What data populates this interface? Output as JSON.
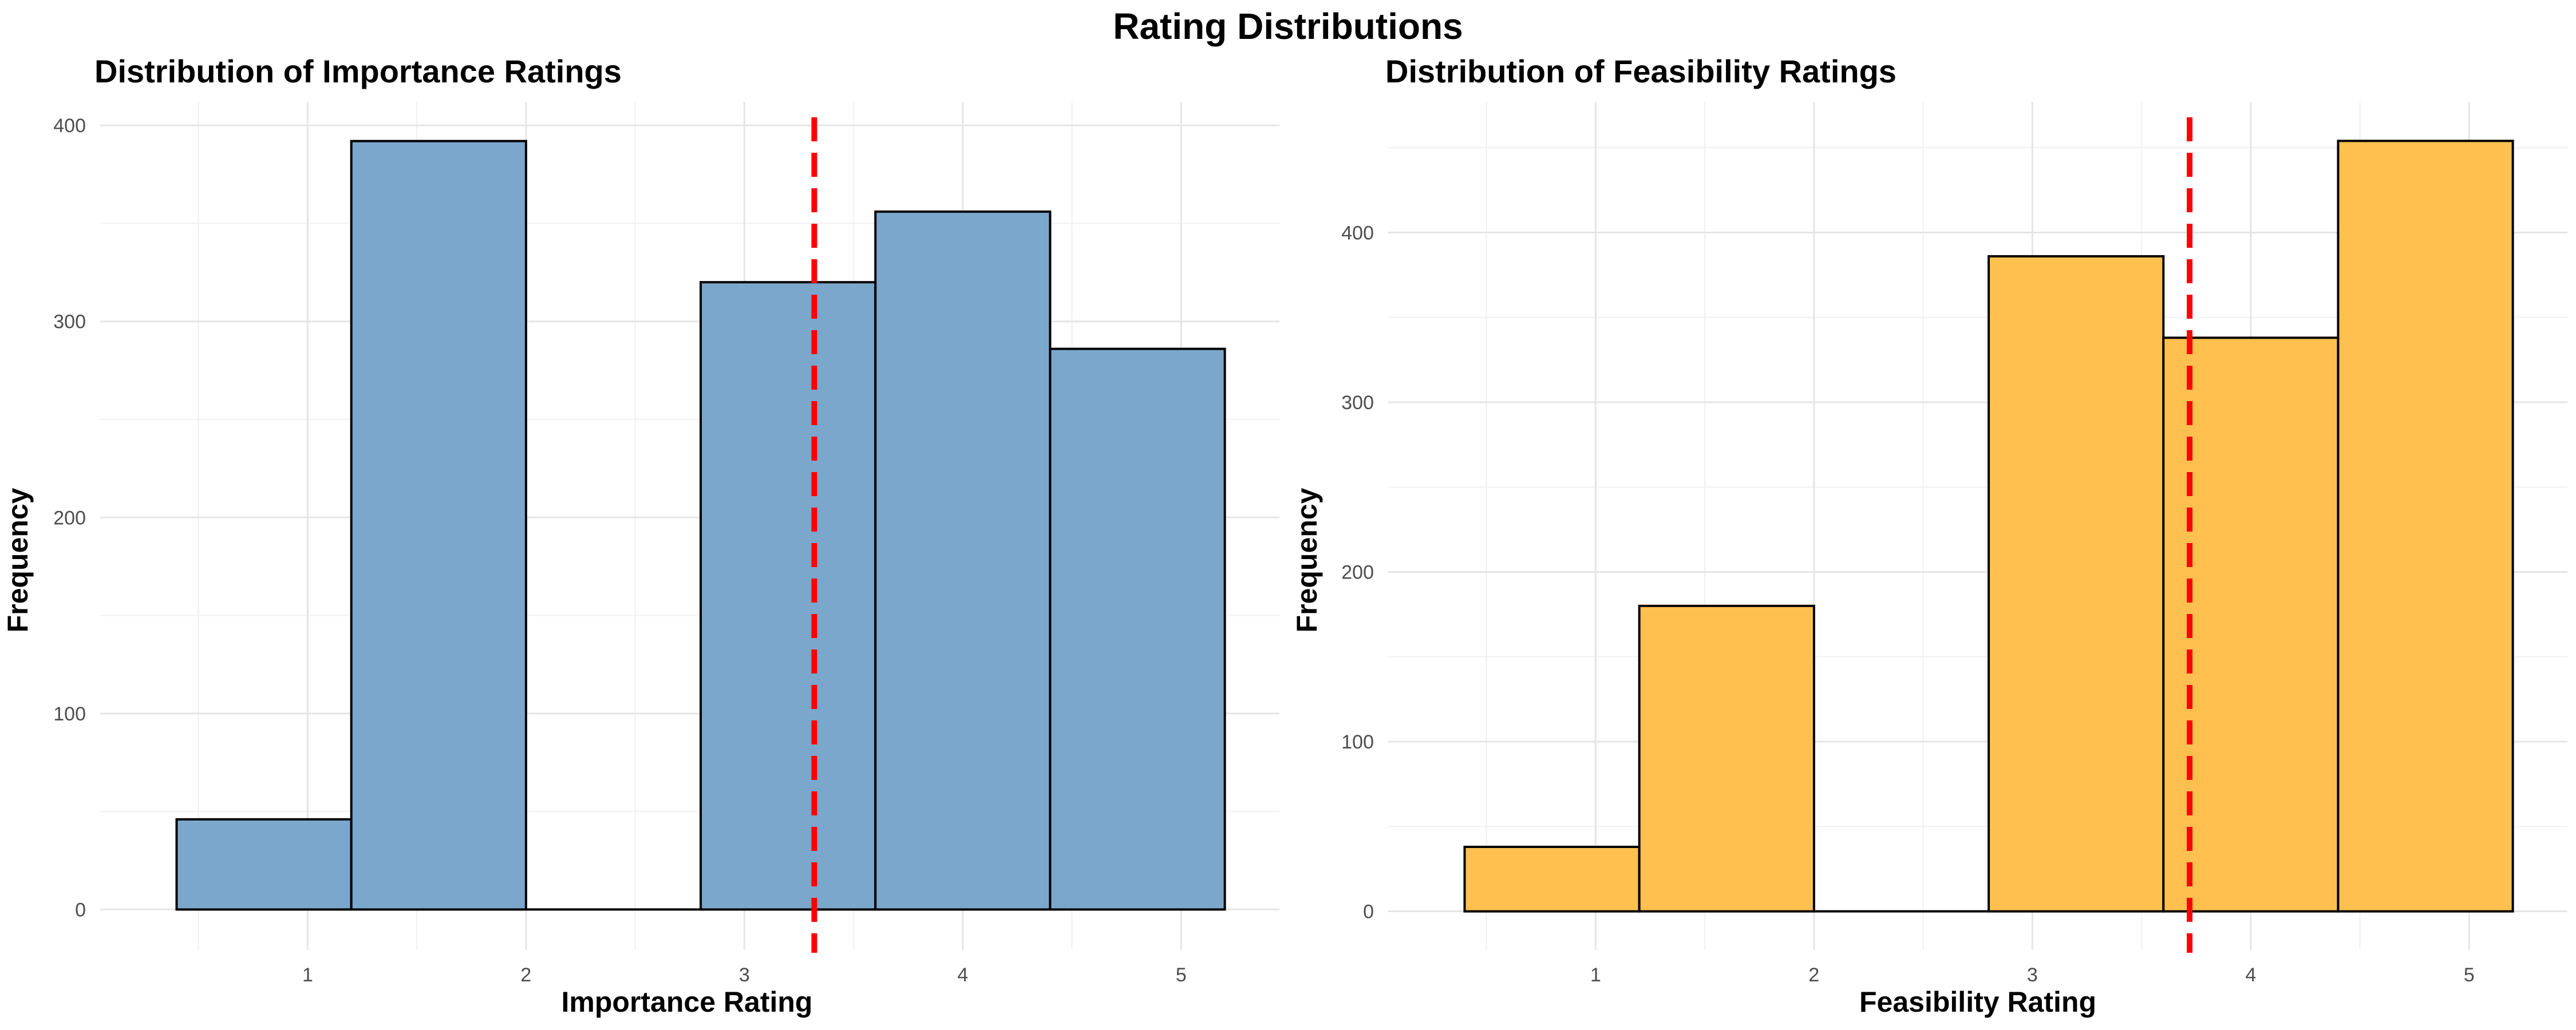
{
  "suptitle": "Rating Distributions",
  "chart_data": [
    {
      "type": "bar",
      "title": "Distribution of Importance Ratings",
      "xlabel": "Importance Rating",
      "ylabel": "Frequency",
      "bins": [
        {
          "from": 0.4,
          "to": 1.2,
          "value": 46
        },
        {
          "from": 1.2,
          "to": 2.0,
          "value": 392
        },
        {
          "from": 2.0,
          "to": 2.8,
          "value": 0
        },
        {
          "from": 2.8,
          "to": 3.6,
          "value": 320
        },
        {
          "from": 3.6,
          "to": 4.4,
          "value": 356
        },
        {
          "from": 4.4,
          "to": 5.2,
          "value": 286
        }
      ],
      "xticks": [
        1,
        2,
        3,
        4,
        5
      ],
      "yticks": [
        0,
        100,
        200,
        300,
        400
      ],
      "xlim": [
        0.05,
        5.45
      ],
      "ylim": [
        -20.6,
        412
      ],
      "mean_line": 3.32,
      "fill_color": "#7BA7CC",
      "edge_color": "#000000",
      "mean_line_color": "#FF0000",
      "grid": true
    },
    {
      "type": "bar",
      "title": "Distribution of Feasibility Ratings",
      "xlabel": "Feasibility Rating",
      "ylabel": "Frequency",
      "bins": [
        {
          "from": 0.4,
          "to": 1.2,
          "value": 38
        },
        {
          "from": 1.2,
          "to": 2.0,
          "value": 180
        },
        {
          "from": 2.0,
          "to": 2.8,
          "value": 0
        },
        {
          "from": 2.8,
          "to": 3.6,
          "value": 386
        },
        {
          "from": 3.6,
          "to": 4.4,
          "value": 338
        },
        {
          "from": 4.4,
          "to": 5.2,
          "value": 454
        }
      ],
      "xticks": [
        1,
        2,
        3,
        4,
        5
      ],
      "yticks": [
        0,
        100,
        200,
        300,
        400
      ],
      "xlim": [
        0.05,
        5.45
      ],
      "ylim": [
        -22.7,
        477
      ],
      "mean_line": 3.72,
      "fill_color": "#FFC04F",
      "edge_color": "#000000",
      "mean_line_color": "#FF0000",
      "grid": true
    }
  ]
}
